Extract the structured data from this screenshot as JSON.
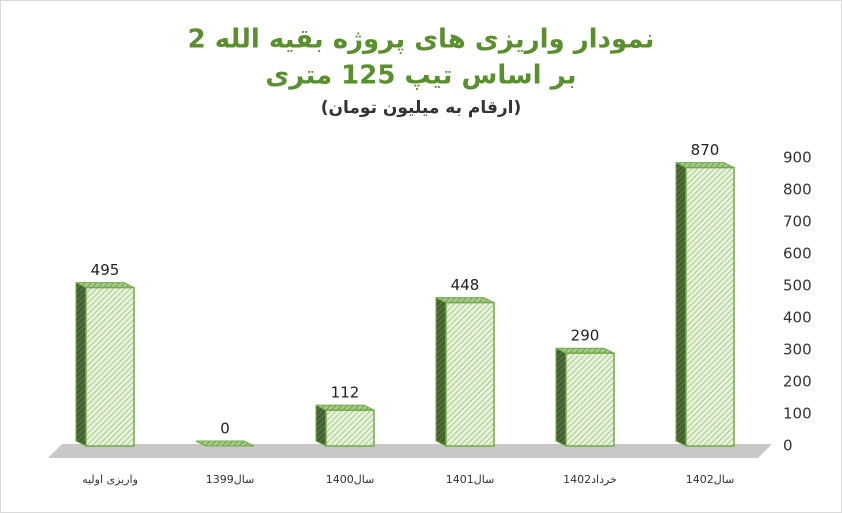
{
  "chart_data": {
    "type": "bar",
    "title": "نمودار واریزی های پروژه بقیه الله 2",
    "subtitle": "بر اساس تیپ 125 متری",
    "note": "(ارقام به میلیون تومان)",
    "categories": [
      "واریزی اولیه",
      "سال1399",
      "سال1400",
      "سال1401",
      "خرداد1402",
      "سال1402"
    ],
    "values": [
      495,
      0,
      112,
      448,
      290,
      870
    ],
    "color": "#70ad47",
    "ylim": [
      0,
      900
    ],
    "yticks": [
      0,
      100,
      200,
      300,
      400,
      500,
      600,
      700,
      800,
      900
    ],
    "grid": false
  }
}
